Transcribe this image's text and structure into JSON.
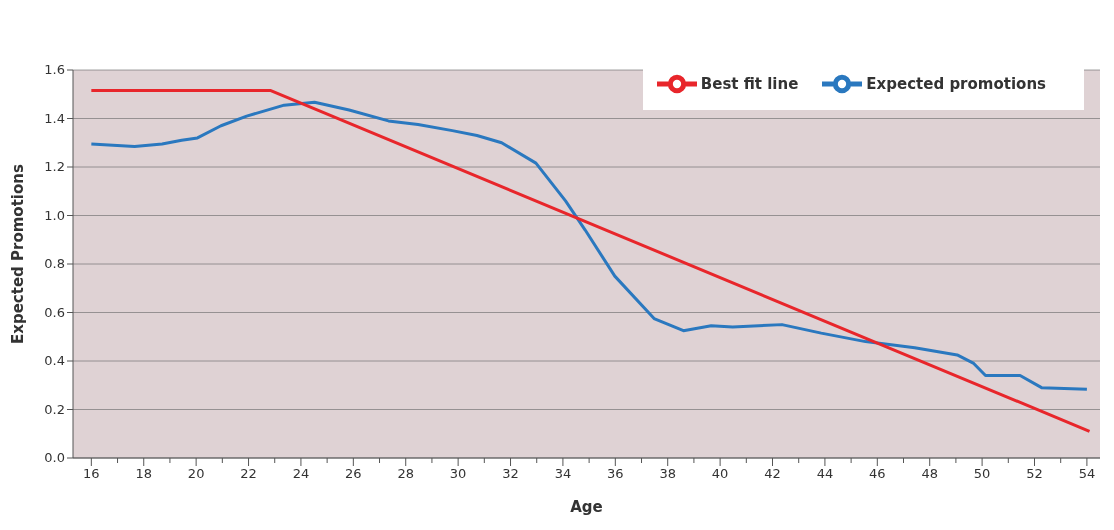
{
  "chart_data": {
    "type": "line",
    "xlabel": "Age",
    "ylabel": "Expected Promotions",
    "series": [
      {
        "name": "Expected promotions",
        "color": "#2a78bf",
        "x": [
          16,
          17.65,
          18.7,
          19.45,
          20.05,
          20.95,
          21.93,
          23.36,
          24.52,
          25.84,
          27.34,
          28.47,
          29.78,
          30.72,
          31.66,
          32.97,
          34.1,
          34.85,
          35.98,
          37.48,
          38.6,
          39.66,
          40.48,
          42.36,
          43.86,
          45.55,
          47.43,
          49.05,
          49.68,
          50.13,
          51.45,
          52.27,
          54
        ],
        "values": [
          1.295,
          1.285,
          1.295,
          1.31,
          1.32,
          1.37,
          1.41,
          1.455,
          1.467,
          1.435,
          1.39,
          1.375,
          1.35,
          1.33,
          1.3,
          1.216,
          1.06,
          0.94,
          0.75,
          0.575,
          0.525,
          0.545,
          0.54,
          0.55,
          0.515,
          0.48,
          0.455,
          0.425,
          0.39,
          0.34,
          0.34,
          0.29,
          0.283
        ]
      },
      {
        "name": "Best fit line",
        "color": "#e8262b",
        "x": [
          16,
          22.85,
          54.1
        ],
        "values": [
          1.515,
          1.515,
          0.11
        ]
      }
    ],
    "xlim": [
      15.3,
      54.5
    ],
    "xticks": [
      16,
      {
        "value": 17,
        "label": null
      },
      18,
      {
        "value": 19,
        "label": null
      },
      20,
      {
        "value": 21,
        "label": null
      },
      22,
      {
        "value": 23,
        "label": null
      },
      24,
      {
        "value": 25,
        "label": null
      },
      26,
      {
        "value": 27,
        "label": null
      },
      28,
      {
        "value": 29,
        "label": null
      },
      30,
      {
        "value": 31,
        "label": null
      },
      32,
      {
        "value": 33,
        "label": null
      },
      34,
      {
        "value": 35,
        "label": null
      },
      36,
      {
        "value": 37,
        "label": null
      },
      38,
      {
        "value": 39,
        "label": null
      },
      40,
      {
        "value": 41,
        "label": null
      },
      42,
      {
        "value": 43,
        "label": null
      },
      44,
      {
        "value": 45,
        "label": null
      },
      46,
      {
        "value": 47,
        "label": null
      },
      48,
      {
        "value": 49,
        "label": null
      },
      50,
      {
        "value": 51,
        "label": null
      },
      52,
      {
        "value": 53,
        "label": null
      },
      54
    ],
    "ylim": [
      0,
      1.6
    ],
    "yticks": [
      {
        "value": 0,
        "label": "0.0"
      },
      0.2,
      0.4,
      0.6,
      0.8,
      {
        "value": 1,
        "label": "1.0"
      },
      1.2,
      1.4,
      1.6
    ],
    "grid": "y",
    "legend": "top right",
    "marker": "none",
    "line_style": "solid"
  }
}
